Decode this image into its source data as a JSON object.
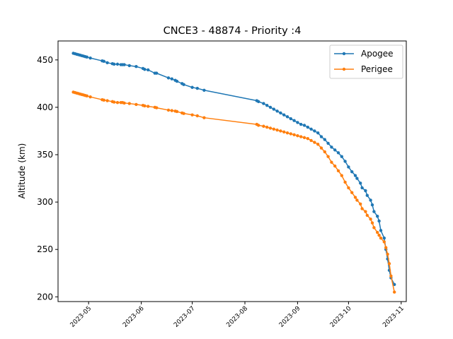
{
  "chart_data": {
    "type": "line",
    "title": "CNCE3 - 48874 - Priority :4",
    "xlabel": "",
    "ylabel": "Altitude (km)",
    "x_type": "date",
    "xlim": [
      "2023-04-13",
      "2023-11-04"
    ],
    "ylim": [
      195,
      470
    ],
    "x_ticks": [
      "2023-05-01",
      "2023-06-01",
      "2023-07-01",
      "2023-08-01",
      "2023-09-01",
      "2023-10-01",
      "2023-11-01"
    ],
    "x_tick_labels": [
      "2023-05",
      "2023-06",
      "2023-07",
      "2023-08",
      "2023-09",
      "2023-10",
      "2023-11"
    ],
    "y_ticks": [
      200,
      250,
      300,
      350,
      400,
      450
    ],
    "y_tick_labels": [
      "200",
      "250",
      "300",
      "350",
      "400",
      "450"
    ],
    "grid": false,
    "legend_position": "top-right",
    "series": [
      {
        "name": "Apogee",
        "color": "#1f77b4",
        "marker": "circle",
        "x": [
          "2023-04-22",
          "2023-04-23",
          "2023-04-24",
          "2023-04-25",
          "2023-04-26",
          "2023-04-27",
          "2023-04-28",
          "2023-04-29",
          "2023-04-30",
          "2023-05-02",
          "2023-05-09",
          "2023-05-10",
          "2023-05-12",
          "2023-05-15",
          "2023-05-16",
          "2023-05-18",
          "2023-05-20",
          "2023-05-21",
          "2023-05-22",
          "2023-05-25",
          "2023-05-29",
          "2023-06-02",
          "2023-06-03",
          "2023-06-05",
          "2023-06-09",
          "2023-06-10",
          "2023-06-17",
          "2023-06-19",
          "2023-06-21",
          "2023-06-22",
          "2023-06-25",
          "2023-06-26",
          "2023-07-01",
          "2023-07-04",
          "2023-07-08",
          "2023-08-08",
          "2023-08-09",
          "2023-08-12",
          "2023-08-14",
          "2023-08-16",
          "2023-08-18",
          "2023-08-20",
          "2023-08-22",
          "2023-08-24",
          "2023-08-26",
          "2023-08-28",
          "2023-08-30",
          "2023-09-01",
          "2023-09-03",
          "2023-09-05",
          "2023-09-07",
          "2023-09-09",
          "2023-09-11",
          "2023-09-13",
          "2023-09-15",
          "2023-09-17",
          "2023-09-19",
          "2023-09-21",
          "2023-09-23",
          "2023-09-25",
          "2023-09-27",
          "2023-09-29",
          "2023-10-01",
          "2023-10-03",
          "2023-10-05",
          "2023-10-06",
          "2023-10-08",
          "2023-10-09",
          "2023-10-11",
          "2023-10-12",
          "2023-10-14",
          "2023-10-15",
          "2023-10-16",
          "2023-10-18",
          "2023-10-19",
          "2023-10-20",
          "2023-10-22",
          "2023-10-23",
          "2023-10-24",
          "2023-10-25",
          "2023-10-26",
          "2023-10-28"
        ],
        "y": [
          457,
          456.5,
          456,
          455.5,
          455,
          454.5,
          454,
          453.5,
          453,
          452,
          449,
          448.5,
          447,
          446,
          445.5,
          445.5,
          445,
          445,
          445,
          444,
          443,
          441,
          440,
          439.5,
          436,
          436,
          431,
          430,
          428.5,
          427.5,
          425,
          424,
          421,
          420,
          418,
          407,
          406,
          404,
          402,
          400,
          398,
          396,
          394,
          392,
          390,
          388,
          386,
          384,
          382,
          381,
          379,
          377,
          375,
          373,
          369,
          366,
          362,
          358,
          355,
          352,
          348,
          343,
          337,
          332,
          328,
          325,
          320,
          315,
          312,
          307,
          302,
          297,
          290,
          285,
          280,
          270,
          262,
          250,
          240,
          228,
          220,
          213
        ]
      },
      {
        "name": "Perigee",
        "color": "#ff7f0e",
        "marker": "circle",
        "x": [
          "2023-04-22",
          "2023-04-23",
          "2023-04-24",
          "2023-04-25",
          "2023-04-26",
          "2023-04-27",
          "2023-04-28",
          "2023-04-29",
          "2023-04-30",
          "2023-05-02",
          "2023-05-09",
          "2023-05-10",
          "2023-05-12",
          "2023-05-15",
          "2023-05-16",
          "2023-05-18",
          "2023-05-20",
          "2023-05-21",
          "2023-05-22",
          "2023-05-25",
          "2023-05-29",
          "2023-06-02",
          "2023-06-03",
          "2023-06-05",
          "2023-06-09",
          "2023-06-10",
          "2023-06-17",
          "2023-06-19",
          "2023-06-21",
          "2023-06-22",
          "2023-06-25",
          "2023-06-26",
          "2023-07-01",
          "2023-07-04",
          "2023-07-08",
          "2023-08-08",
          "2023-08-09",
          "2023-08-12",
          "2023-08-14",
          "2023-08-16",
          "2023-08-18",
          "2023-08-20",
          "2023-08-22",
          "2023-08-24",
          "2023-08-26",
          "2023-08-28",
          "2023-08-30",
          "2023-09-01",
          "2023-09-03",
          "2023-09-05",
          "2023-09-07",
          "2023-09-09",
          "2023-09-11",
          "2023-09-13",
          "2023-09-15",
          "2023-09-17",
          "2023-09-19",
          "2023-09-21",
          "2023-09-23",
          "2023-09-25",
          "2023-09-27",
          "2023-09-29",
          "2023-10-01",
          "2023-10-03",
          "2023-10-05",
          "2023-10-06",
          "2023-10-08",
          "2023-10-09",
          "2023-10-11",
          "2023-10-12",
          "2023-10-14",
          "2023-10-15",
          "2023-10-16",
          "2023-10-18",
          "2023-10-19",
          "2023-10-20",
          "2023-10-22",
          "2023-10-23",
          "2023-10-24",
          "2023-10-25",
          "2023-10-26",
          "2023-10-28"
        ],
        "y": [
          416,
          415.5,
          415,
          414.5,
          414,
          413.5,
          413,
          412.5,
          412,
          411,
          408,
          407.5,
          407,
          406,
          405.5,
          405,
          405,
          405,
          404.5,
          404,
          403,
          402,
          401.5,
          401,
          400,
          399.5,
          397,
          396.5,
          396,
          395.5,
          394,
          393.5,
          392,
          391,
          389,
          382,
          381,
          380,
          379,
          378,
          377,
          376,
          375,
          374,
          373,
          372,
          371,
          370,
          369,
          368,
          367,
          365,
          363,
          361,
          357,
          353,
          348,
          342,
          338,
          333,
          328,
          321,
          315,
          310,
          305,
          302,
          298,
          293,
          290,
          286,
          282,
          278,
          273,
          268,
          265,
          262,
          258,
          252,
          245,
          235,
          222,
          205
        ]
      }
    ]
  }
}
